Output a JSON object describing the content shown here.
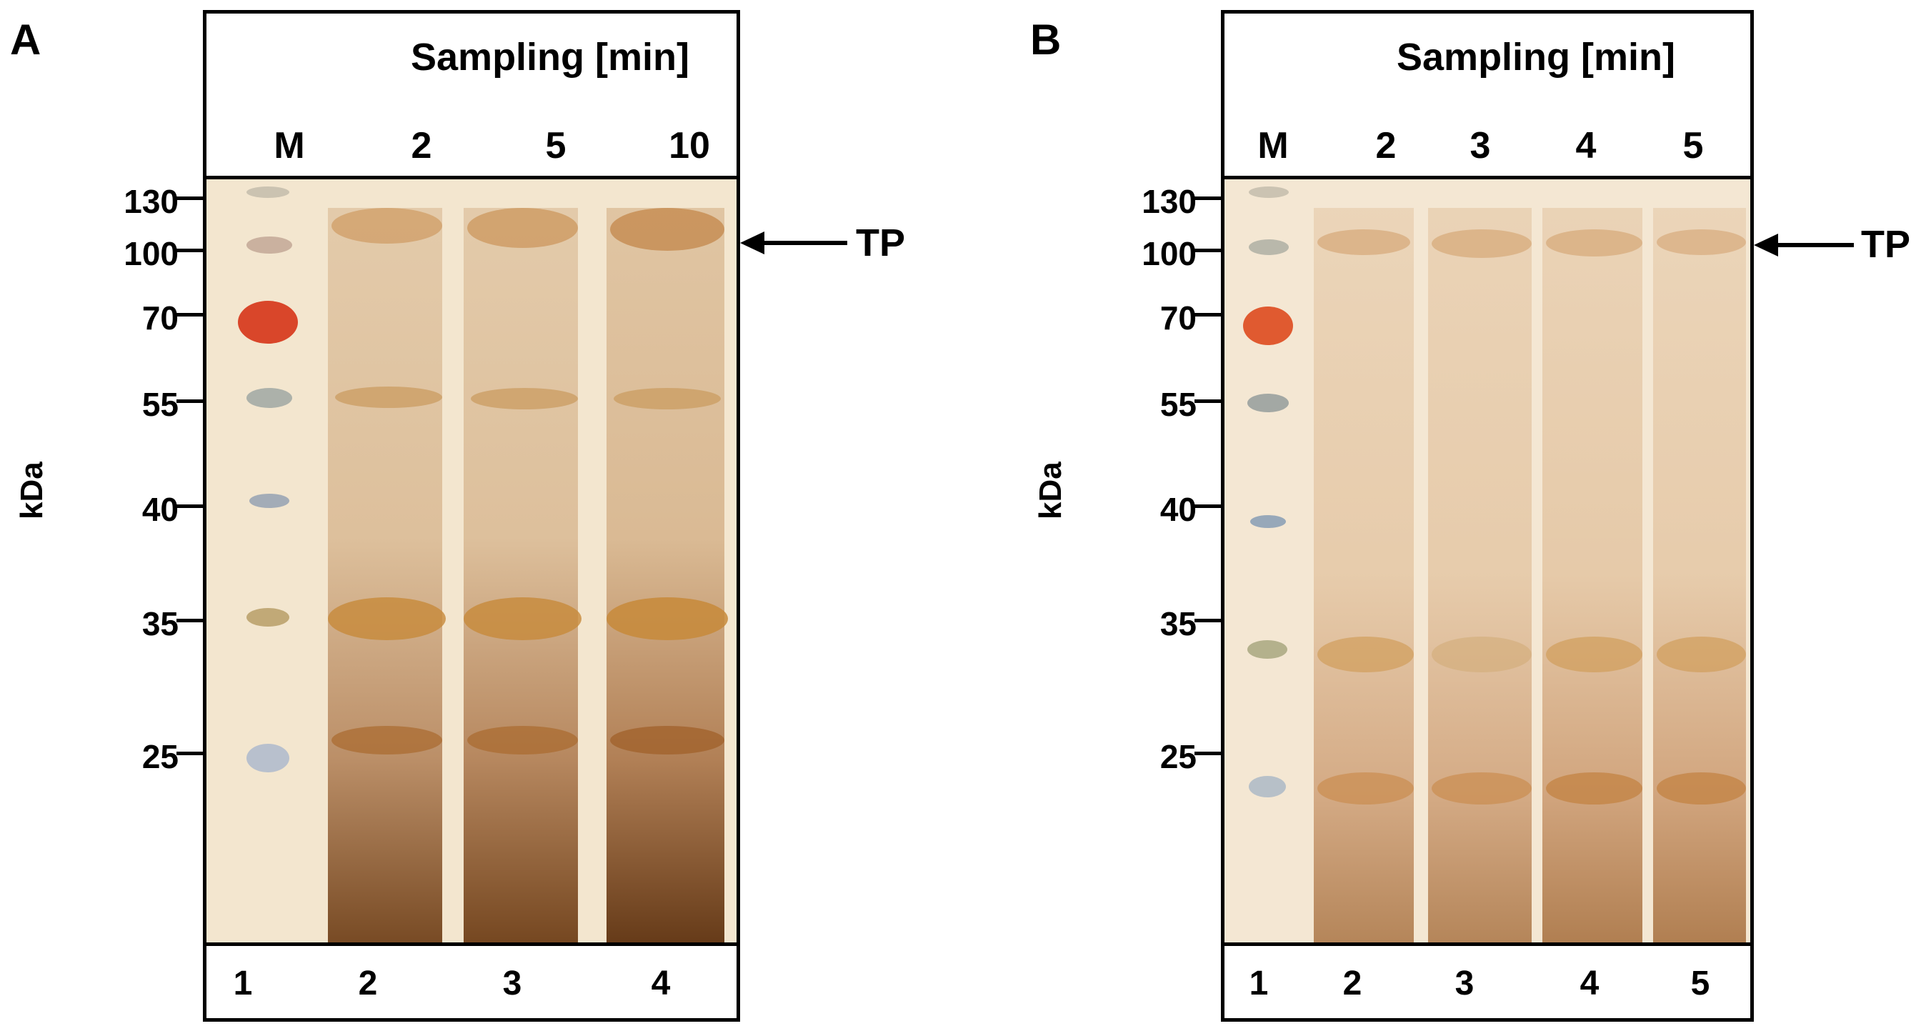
{
  "panels": [
    {
      "letter": "A",
      "header_title": "Sampling [min]",
      "lane_headers": [
        "M",
        "2",
        "5",
        "10"
      ],
      "mw_markers": [
        "130",
        "100",
        "70",
        "55",
        "40",
        "35",
        "25"
      ],
      "unit": "kDa",
      "target_label": "TP",
      "lane_numbers": [
        "1",
        "2",
        "3",
        "4"
      ],
      "colors": {
        "gel_bg": "#f3e6cf",
        "stain": "#a7692a",
        "dark_stain": "#6b3a12",
        "marker_red": "#d9462a",
        "marker_grey": "#9aa4a8",
        "marker_blue": "#8fa7c4"
      }
    },
    {
      "letter": "B",
      "header_title": "Sampling [min]",
      "lane_headers": [
        "M",
        "2",
        "3",
        "4",
        "5"
      ],
      "mw_markers": [
        "130",
        "100",
        "70",
        "55",
        "40",
        "35",
        "25"
      ],
      "unit": "kDa",
      "target_label": "TP",
      "lane_numbers": [
        "1",
        "2",
        "3",
        "4",
        "5"
      ],
      "colors": {
        "gel_bg": "#f4e7d3",
        "stain": "#c78b4f",
        "dark_stain": "#9a5c26",
        "marker_red": "#e05a30",
        "marker_grey": "#8e9898",
        "marker_blue": "#7f98b3"
      }
    }
  ]
}
